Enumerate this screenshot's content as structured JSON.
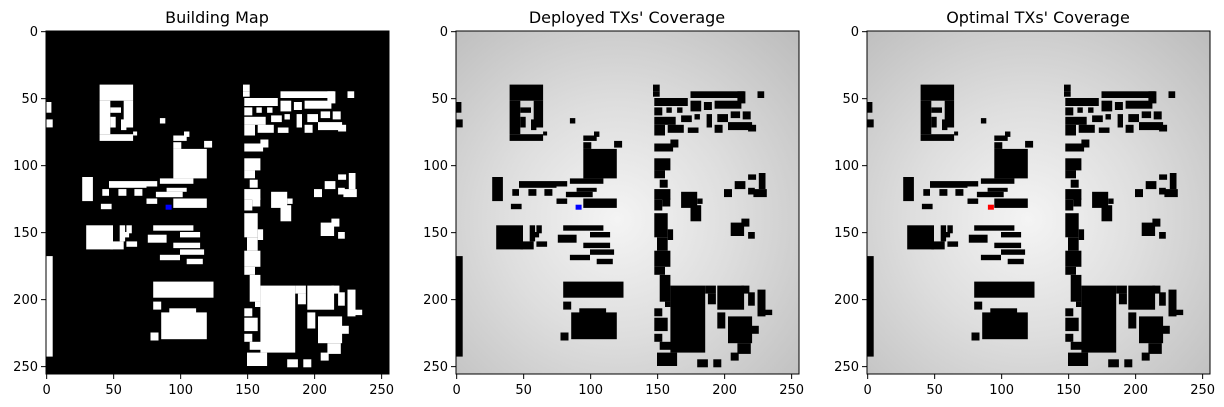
{
  "figure": {
    "panels": [
      {
        "title": "Building Map",
        "tx_color": "#0000ff",
        "background": "#000000",
        "building": "#ffffff",
        "coverage": false
      },
      {
        "title": "Deployed TXs' Coverage",
        "tx_color": "#0000ff",
        "background": "coverage-gray",
        "building": "#000000",
        "coverage": true
      },
      {
        "title": "Optimal TXs' Coverage",
        "tx_color": "#ff0000",
        "background": "coverage-gray",
        "building": "#000000",
        "coverage": true
      }
    ]
  },
  "chart_data": [
    {
      "type": "heatmap",
      "title": "Building Map",
      "xlim": [
        0,
        255
      ],
      "ylim": [
        255,
        0
      ],
      "xticks": [
        0,
        50,
        100,
        150,
        200,
        250
      ],
      "yticks": [
        0,
        50,
        100,
        150,
        200,
        250
      ],
      "colors": {
        "background": "#000000",
        "buildings": "#ffffff",
        "transmitter": "#0000ff"
      },
      "transmitter": {
        "x": 91,
        "y": 131
      }
    },
    {
      "type": "heatmap",
      "title": "Deployed TXs' Coverage",
      "xlim": [
        0,
        255
      ],
      "ylim": [
        255,
        0
      ],
      "xticks": [
        0,
        50,
        100,
        150,
        200,
        250
      ],
      "yticks": [
        0,
        50,
        100,
        150,
        200,
        250
      ],
      "colors": {
        "buildings": "#000000",
        "coverage_high": "#f4f4f4",
        "coverage_low": "#b8b8b8",
        "transmitter": "#0000ff"
      },
      "transmitter": {
        "x": 91,
        "y": 131
      }
    },
    {
      "type": "heatmap",
      "title": "Optimal TXs' Coverage",
      "xlim": [
        0,
        255
      ],
      "ylim": [
        255,
        0
      ],
      "xticks": [
        0,
        50,
        100,
        150,
        200,
        250
      ],
      "yticks": [
        0,
        50,
        100,
        150,
        200,
        250
      ],
      "colors": {
        "buildings": "#000000",
        "coverage_high": "#f4f4f4",
        "coverage_low": "#b8b8b8",
        "transmitter": "#ff0000"
      },
      "transmitter": {
        "x": 92,
        "y": 131
      }
    }
  ]
}
